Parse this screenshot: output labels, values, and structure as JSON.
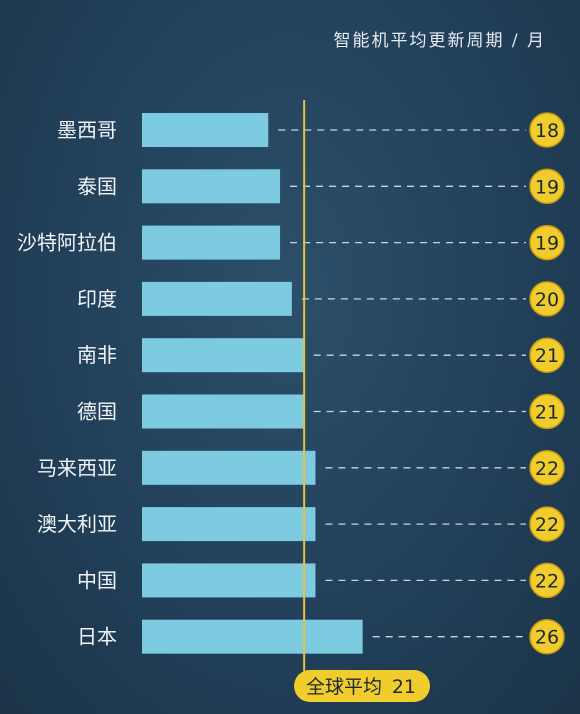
{
  "chart_data": {
    "type": "bar",
    "orientation": "horizontal",
    "title": "智能机平均更新周期 / 月",
    "categories": [
      "墨西哥",
      "泰国",
      "沙特阿拉伯",
      "印度",
      "南非",
      "德国",
      "马来西亚",
      "澳大利亚",
      "中国",
      "日本"
    ],
    "values": [
      18,
      19,
      19,
      20,
      21,
      21,
      22,
      22,
      22,
      26
    ],
    "data_labels": [
      "18",
      "19",
      "19",
      "20",
      "21",
      "21",
      "22",
      "22",
      "22",
      "26"
    ],
    "reference_line": {
      "label": "全球平均",
      "value": 21,
      "value_label": "21"
    },
    "axes_shown": false,
    "grid": false,
    "legend": "none"
  },
  "colors": {
    "background": "#22405a",
    "bar": "#7dcbe0",
    "reference_line": "#e8c23a",
    "badge": "#f0cc2c",
    "label_text": "#f2f5f8",
    "dash": "#c9d4dc"
  }
}
